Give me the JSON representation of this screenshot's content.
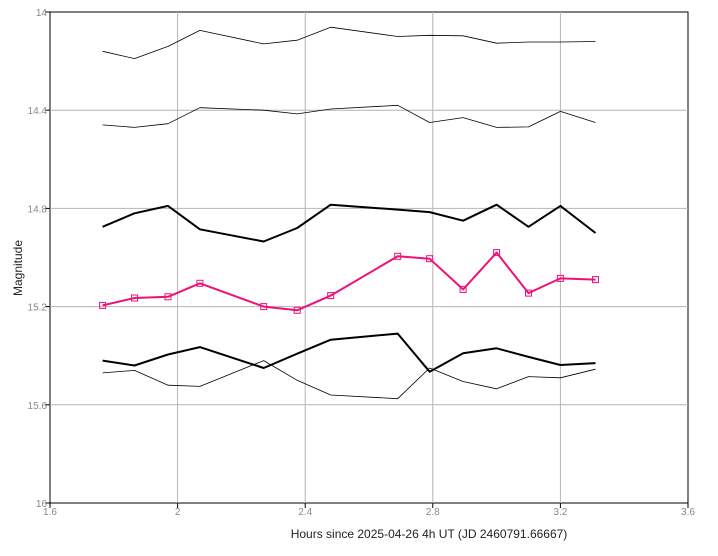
{
  "chart_data": {
    "type": "line",
    "xlabel": "Hours since 2025-04-26 4h UT (JD 2460791.66667)",
    "ylabel": "Magnitude",
    "xlim": [
      1.6,
      3.6
    ],
    "ylim": [
      14,
      16
    ],
    "y_inverted": true,
    "grid": true,
    "x_ticks": [
      "1.6",
      "2",
      "2.4",
      "2.8",
      "3.2",
      "3.6"
    ],
    "y_ticks": [
      "14",
      "14.4",
      "14.8",
      "15.2",
      "15.6",
      "16"
    ],
    "x": [
      1.765,
      1.865,
      1.97,
      2.07,
      2.27,
      2.375,
      2.48,
      2.69,
      2.79,
      2.895,
      3.0,
      3.1,
      3.2,
      3.31
    ],
    "series": [
      {
        "style": "thin",
        "color": "#000000",
        "marker": "none",
        "values": [
          14.16,
          14.19,
          14.14,
          14.075,
          14.13,
          14.115,
          14.062,
          14.1,
          14.095,
          14.097,
          14.127,
          14.122,
          14.122,
          14.12
        ]
      },
      {
        "style": "thin",
        "color": "#000000",
        "marker": "none",
        "values": [
          14.46,
          14.47,
          14.455,
          14.39,
          14.4,
          14.415,
          14.395,
          14.38,
          14.45,
          14.43,
          14.47,
          14.468,
          14.405,
          14.45
        ]
      },
      {
        "style": "thick",
        "color": "#000000",
        "marker": "none",
        "values": [
          14.875,
          14.82,
          14.79,
          14.885,
          14.935,
          14.88,
          14.785,
          14.805,
          14.815,
          14.85,
          14.785,
          14.875,
          14.79,
          14.9
        ]
      },
      {
        "style": "thick",
        "color": "#ee1177",
        "marker": "square",
        "values": [
          15.195,
          15.165,
          15.16,
          15.105,
          15.2,
          15.215,
          15.155,
          14.995,
          15.005,
          15.13,
          14.98,
          15.145,
          15.085,
          15.09
        ]
      },
      {
        "style": "thick",
        "color": "#000000",
        "marker": "none",
        "values": [
          15.42,
          15.44,
          15.395,
          15.365,
          15.45,
          15.392,
          15.335,
          15.31,
          15.465,
          15.39,
          15.37,
          15.405,
          15.438,
          15.43
        ]
      },
      {
        "style": "thin",
        "color": "#000000",
        "marker": "none",
        "values": [
          15.47,
          15.46,
          15.52,
          15.525,
          15.42,
          15.5,
          15.56,
          15.575,
          15.45,
          15.505,
          15.535,
          15.485,
          15.49,
          15.455
        ]
      }
    ]
  }
}
